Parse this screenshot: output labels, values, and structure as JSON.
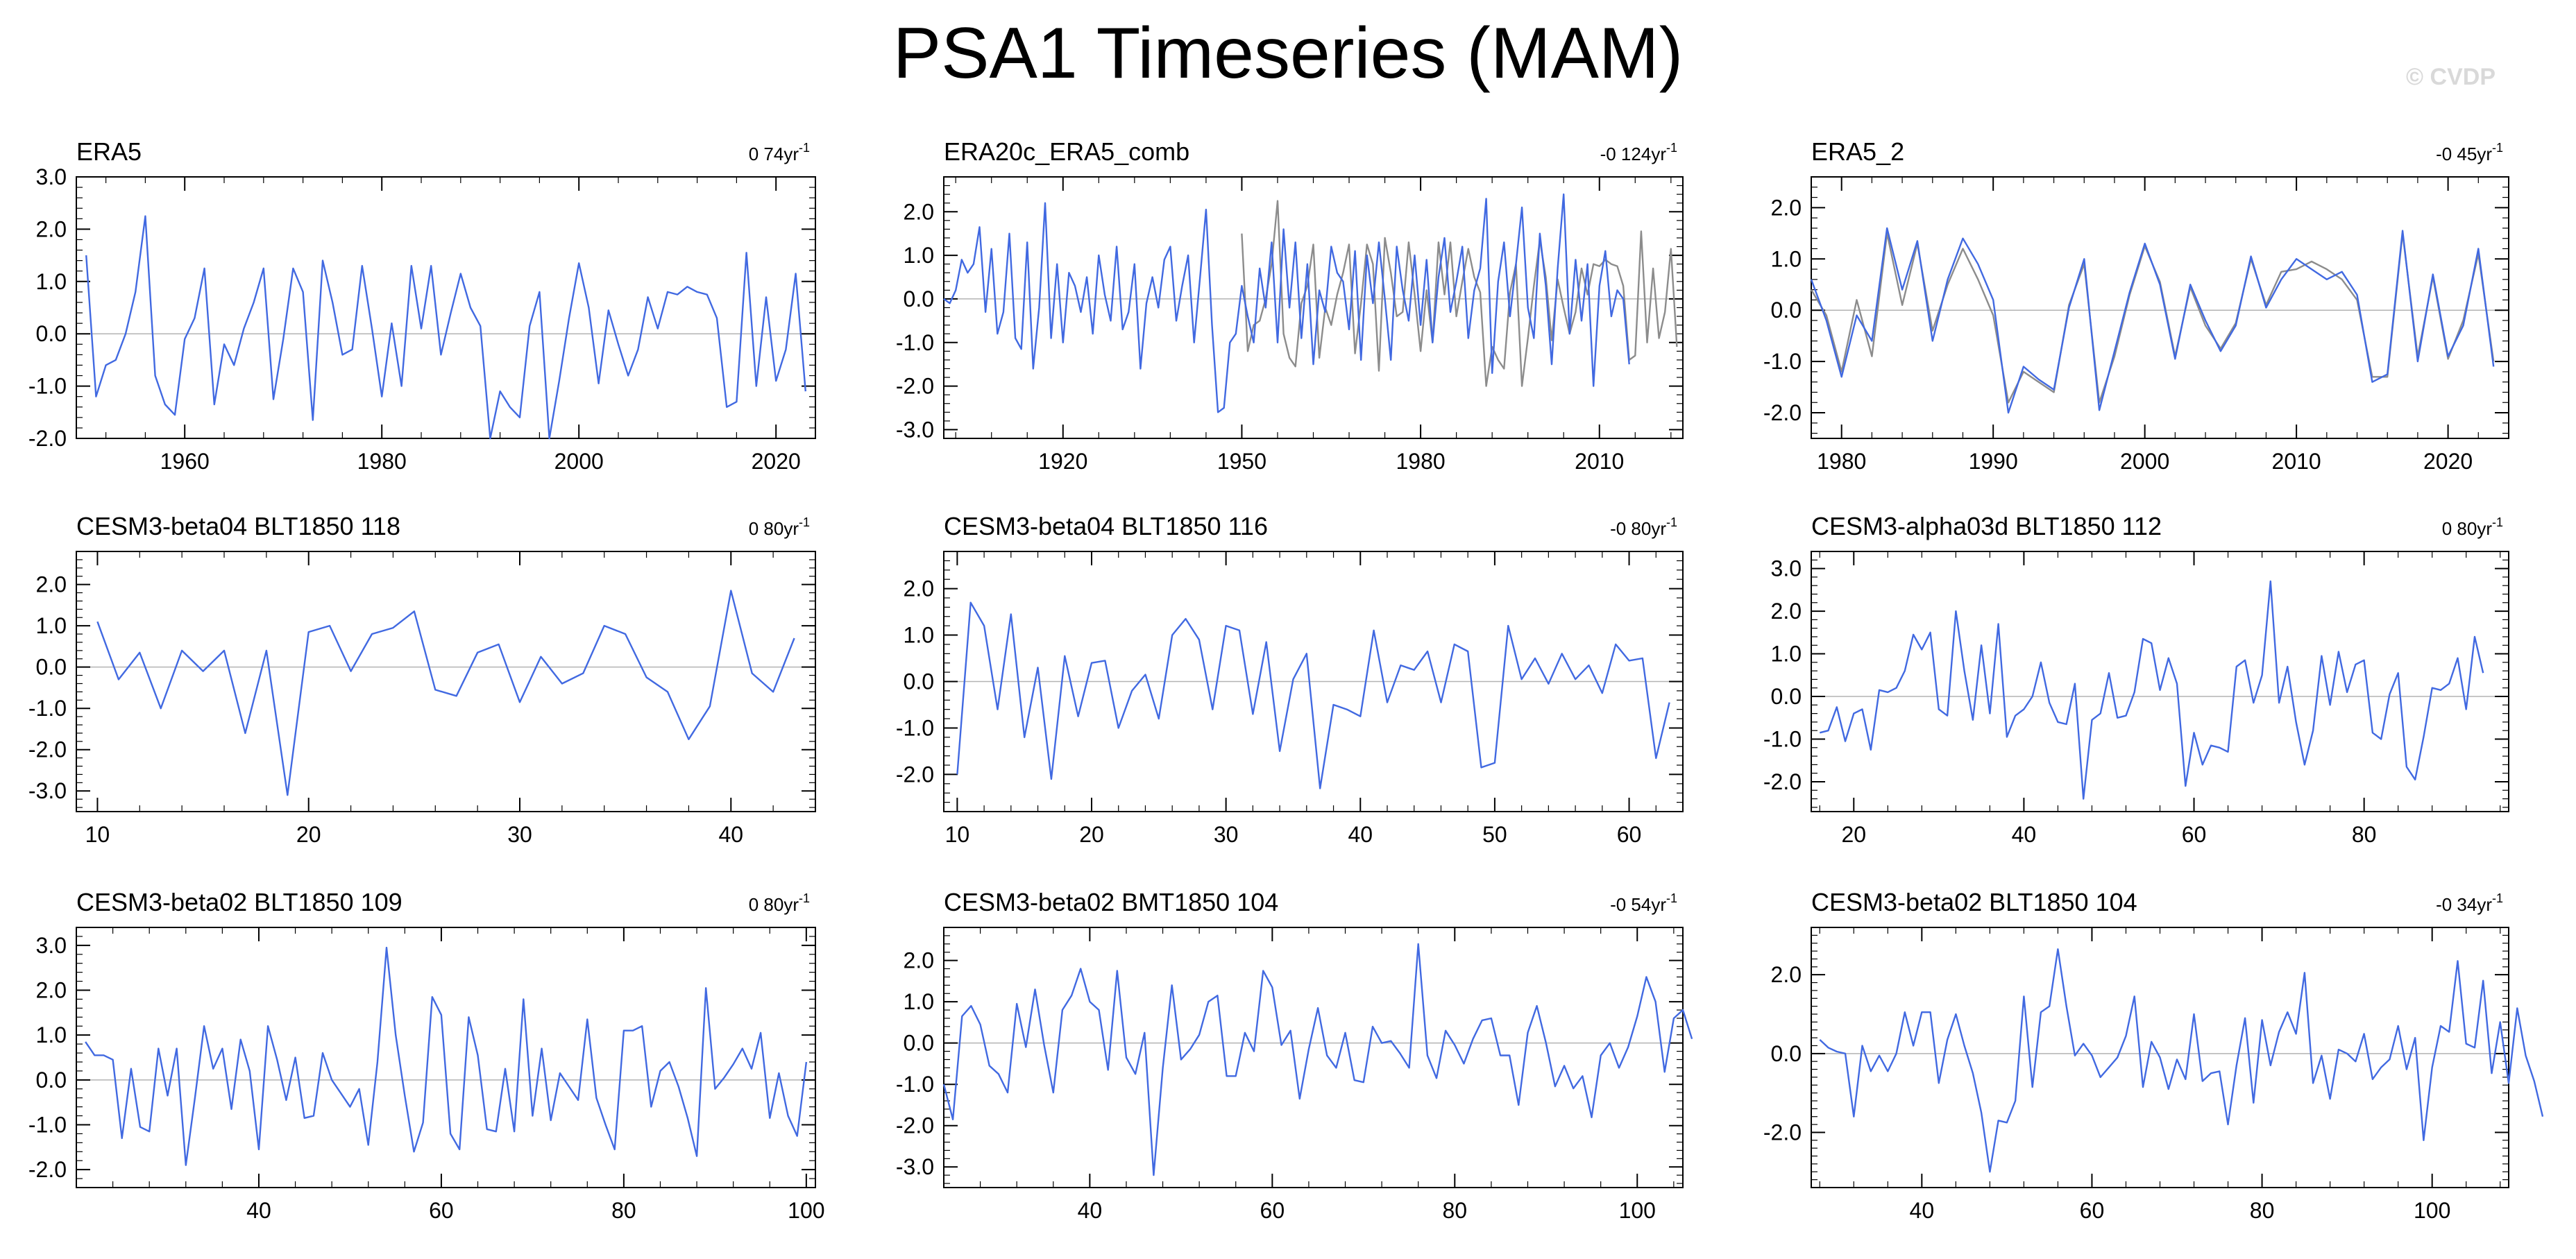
{
  "page": {
    "title": "PSA1 Timeseries (MAM)",
    "watermark": "© CVDP"
  },
  "colors": {
    "primary_series": "#4169e1",
    "secondary_series": "#8c8c8c",
    "zero_line": "#b3b3b3",
    "axes": "#000000"
  },
  "chart_data": [
    {
      "type": "line",
      "title": "ERA5",
      "trend": "0 74yr",
      "trend_unit": "-1",
      "xlim": [
        1949,
        2024
      ],
      "ylim": [
        -2,
        3
      ],
      "xticks": [
        1960,
        1980,
        2000,
        2020
      ],
      "yticks": [
        -2,
        -1,
        0,
        1,
        2,
        3
      ],
      "series": [
        {
          "name": "ERA5",
          "x0": 1950,
          "values": [
            1.5,
            -1.2,
            -0.6,
            -0.5,
            0.0,
            0.8,
            2.25,
            -0.8,
            -1.35,
            -1.55,
            -0.1,
            0.3,
            1.25,
            -1.35,
            -0.2,
            -0.6,
            0.1,
            0.6,
            1.25,
            -1.25,
            -0.1,
            1.25,
            0.8,
            -1.65,
            1.4,
            0.6,
            -0.4,
            -0.3,
            1.3,
            0.1,
            -1.2,
            0.2,
            -1.0,
            1.3,
            0.1,
            1.3,
            -0.4,
            0.4,
            1.15,
            0.5,
            0.15,
            -2.0,
            -1.1,
            -1.4,
            -1.6,
            0.15,
            0.8,
            -2.0,
            -0.9,
            0.3,
            1.35,
            0.5,
            -0.95,
            0.45,
            -0.2,
            -0.8,
            -0.3,
            0.7,
            0.1,
            0.8,
            0.75,
            0.9,
            0.8,
            0.75,
            0.3,
            -1.4,
            -1.3,
            1.55,
            -1.0,
            0.7,
            -0.9,
            -0.3,
            1.15,
            -1.1
          ]
        }
      ]
    },
    {
      "type": "line",
      "title": "ERA20c_ERA5_comb",
      "trend": "-0 124yr",
      "trend_unit": "-1",
      "xlim": [
        1900,
        2024
      ],
      "ylim": [
        -3.2,
        2.8
      ],
      "xticks": [
        1920,
        1950,
        1980,
        2010
      ],
      "yticks": [
        -3,
        -2,
        -1,
        0,
        1,
        2
      ],
      "series": [
        {
          "name": "ERA20c",
          "x0": 1900,
          "values": [
            0.0,
            -0.1,
            0.2,
            0.9,
            0.6,
            0.8,
            1.65,
            -0.3,
            1.15,
            -0.8,
            -0.3,
            1.5,
            -0.9,
            -1.15,
            1.3,
            -1.6,
            -0.2,
            2.2,
            -0.9,
            0.8,
            -1.0,
            0.6,
            0.3,
            -0.3,
            0.5,
            -0.8,
            1.0,
            0.1,
            -0.5,
            1.2,
            -0.7,
            -0.3,
            0.8,
            -1.6,
            -0.1,
            0.5,
            -0.2,
            0.9,
            1.2,
            -0.5,
            0.3,
            1.0,
            -1.0,
            0.5,
            2.05,
            -0.6,
            -2.6,
            -2.5,
            -1.0,
            -0.8,
            0.3,
            -0.4,
            -1.0,
            0.7,
            -0.2,
            1.3,
            -1.0,
            1.6,
            -0.2,
            1.3,
            -0.9,
            0.8,
            -1.5,
            0.2,
            -0.3,
            1.2,
            0.6,
            0.4,
            -0.7,
            1.1,
            -1.4,
            1.0,
            -0.1,
            1.3,
            0.0,
            -1.4,
            1.2,
            0.2,
            -0.5,
            1.0,
            -0.6,
            0.9,
            -1.0,
            0.5,
            1.4,
            -0.3,
            0.4,
            1.2,
            -0.9,
            0.2,
            0.7,
            2.3,
            -1.7,
            0.4,
            1.3,
            -0.4,
            0.8,
            2.1,
            -0.2,
            -0.9,
            1.5,
            0.3,
            -1.5,
            0.7,
            2.4,
            -0.8,
            0.9,
            -0.5,
            0.8,
            -2.0,
            0.3,
            1.1,
            -0.4,
            0.2,
            0.0,
            -1.5
          ]
        },
        {
          "name": "ERA5",
          "x0": 1950,
          "values": [
            1.5,
            -1.2,
            -0.6,
            -0.5,
            0.0,
            0.8,
            2.25,
            -0.8,
            -1.35,
            -1.55,
            -0.1,
            0.3,
            1.25,
            -1.35,
            -0.2,
            -0.6,
            0.1,
            0.6,
            1.25,
            -1.25,
            -0.1,
            1.25,
            0.8,
            -1.65,
            1.4,
            0.6,
            -0.4,
            -0.3,
            1.3,
            0.1,
            -1.2,
            0.2,
            -1.0,
            1.3,
            0.1,
            1.3,
            -0.4,
            0.4,
            1.15,
            0.5,
            0.15,
            -2.0,
            -1.1,
            -1.4,
            -1.6,
            0.15,
            0.8,
            -2.0,
            -0.9,
            0.3,
            1.35,
            0.5,
            -0.95,
            0.45,
            -0.2,
            -0.8,
            -0.3,
            0.7,
            0.1,
            0.8,
            0.75,
            0.9,
            0.8,
            0.75,
            0.3,
            -1.4,
            -1.3,
            1.55,
            -1.0,
            0.7,
            -0.9,
            -0.3,
            1.15,
            -1.1
          ]
        }
      ]
    },
    {
      "type": "line",
      "title": "ERA5_2",
      "trend": "-0 45yr",
      "trend_unit": "-1",
      "xlim": [
        1978,
        2024
      ],
      "ylim": [
        -2.5,
        2.6
      ],
      "xticks": [
        1980,
        1990,
        2000,
        2010,
        2020
      ],
      "yticks": [
        -2,
        -1,
        0,
        1,
        2
      ],
      "series": [
        {
          "name": "ERA5_2",
          "x0": 1978,
          "values": [
            0.6,
            -0.2,
            -1.3,
            -0.1,
            -0.6,
            1.6,
            0.4,
            1.35,
            -0.6,
            0.6,
            1.4,
            0.9,
            0.2,
            -2.0,
            -1.1,
            -1.35,
            -1.55,
            0.05,
            1.0,
            -1.95,
            -0.8,
            0.35,
            1.3,
            0.5,
            -0.95,
            0.5,
            -0.2,
            -0.8,
            -0.3,
            1.05,
            0.05,
            0.6,
            1.0,
            0.8,
            0.6,
            0.75,
            0.3,
            -1.4,
            -1.25,
            1.55,
            -1.0,
            0.7,
            -0.9,
            -0.3,
            1.2,
            -1.1
          ]
        },
        {
          "name": "ERA5",
          "x0": 1978,
          "values": [
            0.4,
            -0.1,
            -1.2,
            0.2,
            -0.9,
            1.5,
            0.1,
            1.3,
            -0.4,
            0.5,
            1.2,
            0.6,
            -0.1,
            -1.8,
            -1.2,
            -1.4,
            -1.6,
            0.1,
            0.9,
            -1.8,
            -0.9,
            0.3,
            1.25,
            0.55,
            -0.9,
            0.45,
            -0.3,
            -0.75,
            -0.25,
            1.0,
            0.1,
            0.75,
            0.8,
            0.95,
            0.8,
            0.6,
            0.2,
            -1.3,
            -1.3,
            1.5,
            -0.9,
            0.65,
            -0.95,
            -0.2,
            1.1,
            -1.0
          ]
        }
      ]
    },
    {
      "type": "line",
      "title": "CESM3-beta04 BLT1850 118",
      "trend": "0 80yr",
      "trend_unit": "-1",
      "xlim": [
        9,
        44
      ],
      "ylim": [
        -3.5,
        2.8
      ],
      "xticks": [
        10,
        20,
        30,
        40
      ],
      "yticks": [
        -3,
        -2,
        -1,
        0,
        1,
        2
      ],
      "series": [
        {
          "name": "CESM3-beta04 BLT1850 118",
          "x0": 10,
          "values": [
            1.1,
            -0.3,
            0.35,
            -1.0,
            0.4,
            -0.1,
            0.4,
            -1.6,
            0.4,
            -3.1,
            0.85,
            1.0,
            -0.1,
            0.8,
            0.95,
            1.35,
            -0.55,
            -0.7,
            0.35,
            0.55,
            -0.85,
            0.25,
            -0.4,
            -0.15,
            1.0,
            0.8,
            -0.25,
            -0.6,
            -1.75,
            -0.95,
            1.85,
            -0.15,
            -0.6,
            0.7
          ]
        }
      ]
    },
    {
      "type": "line",
      "title": "CESM3-beta04 BLT1850 116",
      "trend": "-0 80yr",
      "trend_unit": "-1",
      "xlim": [
        9,
        64
      ],
      "ylim": [
        -2.8,
        2.8
      ],
      "xticks": [
        10,
        20,
        30,
        40,
        50,
        60
      ],
      "yticks": [
        -2,
        -1,
        0,
        1,
        2
      ],
      "series": [
        {
          "name": "CESM3-beta04 BLT1850 116",
          "x0": 10,
          "values": [
            -2.0,
            1.7,
            1.2,
            -0.6,
            1.45,
            -1.2,
            0.3,
            -2.1,
            0.55,
            -0.75,
            0.4,
            0.45,
            -1.0,
            -0.2,
            0.15,
            -0.8,
            1.0,
            1.35,
            0.9,
            -0.6,
            1.2,
            1.1,
            -0.7,
            0.85,
            -1.5,
            0.05,
            0.6,
            -2.3,
            -0.5,
            -0.6,
            -0.75,
            1.1,
            -0.45,
            0.35,
            0.25,
            0.65,
            -0.45,
            0.8,
            0.65,
            -1.85,
            -1.75,
            1.2,
            0.05,
            0.5,
            -0.05,
            0.6,
            0.05,
            0.35,
            -0.25,
            0.8,
            0.45,
            0.5,
            -1.65,
            -0.45
          ]
        }
      ]
    },
    {
      "type": "line",
      "title": "CESM3-alpha03d BLT1850 112",
      "trend": "0 80yr",
      "trend_unit": "-1",
      "xlim": [
        15,
        97
      ],
      "ylim": [
        -2.7,
        3.4
      ],
      "xticks": [
        20,
        40,
        60,
        80
      ],
      "yticks": [
        -2,
        -1,
        0,
        1,
        2,
        3
      ],
      "series": [
        {
          "name": "CESM3-alpha03d BLT1850 112",
          "x0": 16,
          "values": [
            -0.85,
            -0.8,
            -0.25,
            -1.05,
            -0.4,
            -0.3,
            -1.25,
            0.15,
            0.1,
            0.2,
            0.6,
            1.45,
            1.1,
            1.5,
            -0.3,
            -0.45,
            2.0,
            0.6,
            -0.55,
            1.2,
            -0.4,
            1.7,
            -0.95,
            -0.45,
            -0.3,
            0.0,
            0.8,
            -0.15,
            -0.6,
            -0.65,
            0.3,
            -2.4,
            -0.55,
            -0.4,
            0.55,
            -0.5,
            -0.45,
            0.1,
            1.35,
            1.25,
            0.15,
            0.9,
            0.3,
            -2.1,
            -0.85,
            -1.6,
            -1.15,
            -1.2,
            -1.3,
            0.7,
            0.85,
            -0.15,
            0.5,
            2.7,
            -0.15,
            0.7,
            -0.6,
            -1.6,
            -0.8,
            0.95,
            -0.2,
            1.05,
            0.1,
            0.75,
            0.85,
            -0.85,
            -1.0,
            0.05,
            0.55,
            -1.65,
            -1.95,
            -0.95,
            0.2,
            0.15,
            0.3,
            0.9,
            -0.3,
            1.4,
            0.55
          ]
        }
      ]
    },
    {
      "type": "line",
      "title": "CESM3-beta02 BLT1850 109",
      "trend": "0 80yr",
      "trend_unit": "-1",
      "xlim": [
        20,
        101
      ],
      "ylim": [
        -2.4,
        3.4
      ],
      "xticks": [
        40,
        60,
        80,
        100
      ],
      "yticks": [
        -2,
        -1,
        0,
        1,
        2,
        3
      ],
      "series": [
        {
          "name": "CESM3-beta02 BLT1850 109",
          "x0": 21,
          "values": [
            0.85,
            0.55,
            0.55,
            0.45,
            -1.3,
            0.25,
            -1.05,
            -1.15,
            0.7,
            -0.35,
            0.7,
            -1.9,
            -0.4,
            1.2,
            0.25,
            0.7,
            -0.65,
            0.9,
            0.2,
            -1.55,
            1.2,
            0.45,
            -0.45,
            0.5,
            -0.85,
            -0.8,
            0.6,
            0.0,
            -0.3,
            -0.6,
            -0.2,
            -1.45,
            0.4,
            2.95,
            1.0,
            -0.35,
            -1.6,
            -0.95,
            1.85,
            1.45,
            -1.2,
            -1.55,
            1.4,
            0.55,
            -1.1,
            -1.15,
            0.25,
            -1.15,
            1.8,
            -0.8,
            0.7,
            -0.9,
            0.15,
            -0.15,
            -0.45,
            1.35,
            -0.4,
            -1.0,
            -1.55,
            1.1,
            1.1,
            1.2,
            -0.6,
            0.2,
            0.4,
            -0.15,
            -0.85,
            -1.7,
            2.05,
            -0.2,
            0.05,
            0.35,
            0.7,
            0.25,
            1.05,
            -0.85,
            0.15,
            -0.8,
            -1.25,
            0.4
          ]
        }
      ]
    },
    {
      "type": "line",
      "title": "CESM3-beta02 BMT1850 104",
      "trend": "-0 54yr",
      "trend_unit": "-1",
      "xlim": [
        24,
        105
      ],
      "ylim": [
        -3.5,
        2.8
      ],
      "xticks": [
        40,
        60,
        80,
        100
      ],
      "yticks": [
        -3,
        -2,
        -1,
        0,
        1,
        2
      ],
      "series": [
        {
          "name": "CESM3-beta02 BMT1850 104",
          "x0": 24,
          "values": [
            -1.0,
            -1.85,
            0.65,
            0.9,
            0.45,
            -0.55,
            -0.75,
            -1.2,
            0.95,
            -0.1,
            1.3,
            -0.05,
            -1.2,
            0.8,
            1.15,
            1.8,
            1.0,
            0.8,
            -0.65,
            1.75,
            -0.35,
            -0.75,
            0.25,
            -3.2,
            -0.6,
            1.4,
            -0.4,
            -0.15,
            0.2,
            1.0,
            1.15,
            -0.8,
            -0.8,
            0.25,
            -0.2,
            1.75,
            1.35,
            -0.05,
            0.3,
            -1.35,
            -0.15,
            0.85,
            -0.3,
            -0.6,
            0.25,
            -0.9,
            -0.95,
            0.4,
            0.0,
            0.05,
            -0.25,
            -0.6,
            2.4,
            -0.3,
            -0.85,
            0.3,
            -0.05,
            -0.5,
            0.1,
            0.55,
            0.6,
            -0.3,
            -0.3,
            -1.5,
            0.25,
            0.9,
            0.0,
            -1.05,
            -0.55,
            -1.1,
            -0.8,
            -1.8,
            -0.3,
            0.0,
            -0.6,
            -0.1,
            0.65,
            1.6,
            1.0,
            -0.7,
            0.6,
            0.8,
            0.1
          ]
        }
      ]
    },
    {
      "type": "line",
      "title": "CESM3-beta02 BLT1850 104",
      "trend": "-0 34yr",
      "trend_unit": "-1",
      "xlim": [
        27,
        109
      ],
      "ylim": [
        -3.4,
        3.2
      ],
      "xticks": [
        40,
        60,
        80,
        100
      ],
      "yticks": [
        -2,
        0,
        2
      ],
      "series": [
        {
          "name": "CESM3-beta02 BLT1850 104",
          "x0": 28,
          "values": [
            0.35,
            0.15,
            0.05,
            0.0,
            -1.6,
            0.2,
            -0.45,
            -0.05,
            -0.45,
            0.0,
            1.05,
            0.2,
            1.05,
            1.05,
            -0.75,
            0.35,
            1.0,
            0.2,
            -0.5,
            -1.5,
            -3.0,
            -1.7,
            -1.75,
            -1.2,
            1.45,
            -0.85,
            1.05,
            1.2,
            2.65,
            1.2,
            -0.05,
            0.25,
            -0.05,
            -0.6,
            -0.35,
            -0.1,
            0.45,
            1.45,
            -0.85,
            0.3,
            -0.1,
            -0.9,
            -0.15,
            -0.65,
            1.0,
            -0.7,
            -0.5,
            -0.45,
            -1.8,
            -0.3,
            0.9,
            -1.25,
            0.85,
            -0.3,
            0.55,
            1.05,
            0.5,
            2.05,
            -0.75,
            -0.05,
            -1.15,
            0.1,
            0.0,
            -0.2,
            0.5,
            -0.65,
            -0.35,
            -0.15,
            0.7,
            -0.4,
            0.4,
            -2.2,
            -0.35,
            0.7,
            0.55,
            2.35,
            0.25,
            0.15,
            1.85,
            -0.5,
            0.8,
            -0.75,
            1.15,
            -0.05,
            -0.7,
            -1.6
          ]
        }
      ]
    }
  ]
}
